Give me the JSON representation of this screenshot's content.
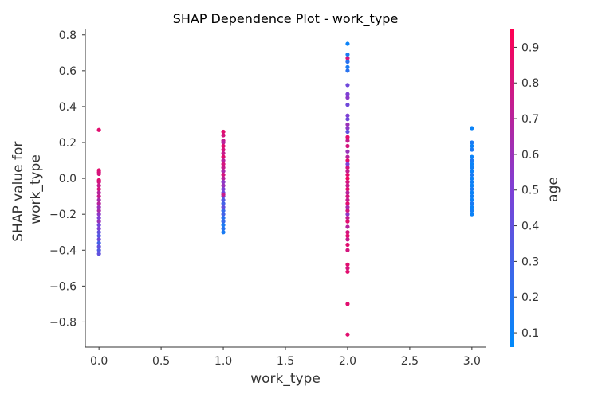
{
  "chart_data": {
    "type": "scatter",
    "title": "SHAP Dependence Plot - work_type",
    "xlabel": "work_type",
    "ylabel_lines": [
      "SHAP value for",
      "work_type"
    ],
    "xlim": [
      -0.11,
      3.11
    ],
    "ylim": [
      -0.94,
      0.83
    ],
    "x_ticks": [
      0.0,
      0.5,
      1.0,
      1.5,
      2.0,
      2.5,
      3.0
    ],
    "x_tick_labels": [
      "0.0",
      "0.5",
      "1.0",
      "1.5",
      "2.0",
      "2.5",
      "3.0"
    ],
    "y_ticks": [
      0.8,
      0.6,
      0.4,
      0.2,
      0.0,
      -0.2,
      -0.4,
      -0.6,
      -0.8
    ],
    "y_tick_labels": [
      "0.8",
      "0.6",
      "0.4",
      "0.2",
      "0.0",
      "−0.2",
      "−0.4",
      "−0.6",
      "−0.8"
    ],
    "grid": false,
    "colorbar": {
      "label": "age",
      "range": [
        0.06,
        0.95
      ],
      "ticks": [
        0.1,
        0.2,
        0.3,
        0.4,
        0.5,
        0.6,
        0.7,
        0.8,
        0.9
      ],
      "tick_labels": [
        "0.1",
        "0.2",
        "0.3",
        "0.4",
        "0.5",
        "0.6",
        "0.7",
        "0.8",
        "0.9"
      ],
      "colormap": [
        "#008afb",
        "#7f3fd5",
        "#ff0052"
      ]
    },
    "points": [
      {
        "x": 0,
        "y": 0.27,
        "c": 0.85
      },
      {
        "x": 0,
        "y": 0.045,
        "c": 0.85
      },
      {
        "x": 0,
        "y": 0.035,
        "c": 0.82
      },
      {
        "x": 0,
        "y": 0.025,
        "c": 0.8
      },
      {
        "x": 0,
        "y": -0.01,
        "c": 0.85
      },
      {
        "x": 0,
        "y": -0.02,
        "c": 0.8
      },
      {
        "x": 0,
        "y": -0.04,
        "c": 0.75
      },
      {
        "x": 0,
        "y": -0.06,
        "c": 0.8
      },
      {
        "x": 0,
        "y": -0.08,
        "c": 0.7
      },
      {
        "x": 0,
        "y": -0.1,
        "c": 0.75
      },
      {
        "x": 0,
        "y": -0.12,
        "c": 0.65
      },
      {
        "x": 0,
        "y": -0.14,
        "c": 0.7
      },
      {
        "x": 0,
        "y": -0.16,
        "c": 0.6
      },
      {
        "x": 0,
        "y": -0.18,
        "c": 0.65
      },
      {
        "x": 0,
        "y": -0.2,
        "c": 0.55
      },
      {
        "x": 0,
        "y": -0.22,
        "c": 0.5
      },
      {
        "x": 0,
        "y": -0.24,
        "c": 0.6
      },
      {
        "x": 0,
        "y": -0.26,
        "c": 0.45
      },
      {
        "x": 0,
        "y": -0.28,
        "c": 0.5
      },
      {
        "x": 0,
        "y": -0.3,
        "c": 0.4
      },
      {
        "x": 0,
        "y": -0.32,
        "c": 0.35
      },
      {
        "x": 0,
        "y": -0.34,
        "c": 0.45
      },
      {
        "x": 0,
        "y": -0.36,
        "c": 0.3
      },
      {
        "x": 0,
        "y": -0.38,
        "c": 0.4
      },
      {
        "x": 0,
        "y": -0.4,
        "c": 0.35
      },
      {
        "x": 0,
        "y": -0.42,
        "c": 0.4
      },
      {
        "x": 1,
        "y": 0.26,
        "c": 0.85
      },
      {
        "x": 1,
        "y": 0.24,
        "c": 0.8
      },
      {
        "x": 1,
        "y": 0.21,
        "c": 0.75
      },
      {
        "x": 1,
        "y": 0.2,
        "c": 0.7
      },
      {
        "x": 1,
        "y": 0.18,
        "c": 0.85
      },
      {
        "x": 1,
        "y": 0.16,
        "c": 0.8
      },
      {
        "x": 1,
        "y": 0.14,
        "c": 0.75
      },
      {
        "x": 1,
        "y": 0.12,
        "c": 0.85
      },
      {
        "x": 1,
        "y": 0.1,
        "c": 0.7
      },
      {
        "x": 1,
        "y": 0.08,
        "c": 0.8
      },
      {
        "x": 1,
        "y": 0.06,
        "c": 0.75
      },
      {
        "x": 1,
        "y": 0.04,
        "c": 0.65
      },
      {
        "x": 1,
        "y": 0.02,
        "c": 0.8
      },
      {
        "x": 1,
        "y": 0.0,
        "c": 0.7
      },
      {
        "x": 1,
        "y": -0.02,
        "c": 0.55
      },
      {
        "x": 1,
        "y": -0.04,
        "c": 0.6
      },
      {
        "x": 1,
        "y": -0.06,
        "c": 0.5
      },
      {
        "x": 1,
        "y": -0.08,
        "c": 0.45
      },
      {
        "x": 1,
        "y": -0.1,
        "c": 0.4
      },
      {
        "x": 1,
        "y": -0.12,
        "c": 0.35
      },
      {
        "x": 1,
        "y": -0.14,
        "c": 0.3
      },
      {
        "x": 1,
        "y": -0.16,
        "c": 0.4
      },
      {
        "x": 1,
        "y": -0.18,
        "c": 0.25
      },
      {
        "x": 1,
        "y": -0.2,
        "c": 0.3
      },
      {
        "x": 1,
        "y": -0.22,
        "c": 0.2
      },
      {
        "x": 1,
        "y": -0.24,
        "c": 0.25
      },
      {
        "x": 1,
        "y": -0.26,
        "c": 0.15
      },
      {
        "x": 1,
        "y": -0.28,
        "c": 0.2
      },
      {
        "x": 1,
        "y": -0.3,
        "c": 0.15
      },
      {
        "x": 1,
        "y": -0.09,
        "c": 0.75
      },
      {
        "x": 2,
        "y": 0.75,
        "c": 0.1
      },
      {
        "x": 2,
        "y": 0.69,
        "c": 0.15
      },
      {
        "x": 2,
        "y": 0.67,
        "c": 0.8
      },
      {
        "x": 2,
        "y": 0.65,
        "c": 0.2
      },
      {
        "x": 2,
        "y": 0.62,
        "c": 0.15
      },
      {
        "x": 2,
        "y": 0.6,
        "c": 0.2
      },
      {
        "x": 2,
        "y": 0.52,
        "c": 0.45
      },
      {
        "x": 2,
        "y": 0.47,
        "c": 0.5
      },
      {
        "x": 2,
        "y": 0.45,
        "c": 0.55
      },
      {
        "x": 2,
        "y": 0.41,
        "c": 0.45
      },
      {
        "x": 2,
        "y": 0.35,
        "c": 0.5
      },
      {
        "x": 2,
        "y": 0.33,
        "c": 0.45
      },
      {
        "x": 2,
        "y": 0.3,
        "c": 0.6
      },
      {
        "x": 2,
        "y": 0.28,
        "c": 0.55
      },
      {
        "x": 2,
        "y": 0.26,
        "c": 0.4
      },
      {
        "x": 2,
        "y": 0.23,
        "c": 0.85
      },
      {
        "x": 2,
        "y": 0.21,
        "c": 0.75
      },
      {
        "x": 2,
        "y": 0.18,
        "c": 0.8
      },
      {
        "x": 2,
        "y": 0.15,
        "c": 0.6
      },
      {
        "x": 2,
        "y": 0.12,
        "c": 0.7
      },
      {
        "x": 2,
        "y": 0.1,
        "c": 0.85
      },
      {
        "x": 2,
        "y": 0.08,
        "c": 0.5
      },
      {
        "x": 2,
        "y": 0.06,
        "c": 0.8
      },
      {
        "x": 2,
        "y": 0.04,
        "c": 0.75
      },
      {
        "x": 2,
        "y": 0.02,
        "c": 0.85
      },
      {
        "x": 2,
        "y": 0.0,
        "c": 0.9
      },
      {
        "x": 2,
        "y": -0.02,
        "c": 0.8
      },
      {
        "x": 2,
        "y": -0.04,
        "c": 0.75
      },
      {
        "x": 2,
        "y": -0.06,
        "c": 0.85
      },
      {
        "x": 2,
        "y": -0.08,
        "c": 0.7
      },
      {
        "x": 2,
        "y": -0.1,
        "c": 0.8
      },
      {
        "x": 2,
        "y": -0.12,
        "c": 0.75
      },
      {
        "x": 2,
        "y": -0.14,
        "c": 0.85
      },
      {
        "x": 2,
        "y": -0.16,
        "c": 0.65
      },
      {
        "x": 2,
        "y": -0.18,
        "c": 0.8
      },
      {
        "x": 2,
        "y": -0.2,
        "c": 0.55
      },
      {
        "x": 2,
        "y": -0.22,
        "c": 0.75
      },
      {
        "x": 2,
        "y": -0.24,
        "c": 0.85
      },
      {
        "x": 2,
        "y": -0.27,
        "c": 0.7
      },
      {
        "x": 2,
        "y": -0.3,
        "c": 0.8
      },
      {
        "x": 2,
        "y": -0.32,
        "c": 0.85
      },
      {
        "x": 2,
        "y": -0.34,
        "c": 0.75
      },
      {
        "x": 2,
        "y": -0.37,
        "c": 0.85
      },
      {
        "x": 2,
        "y": -0.4,
        "c": 0.8
      },
      {
        "x": 2,
        "y": -0.48,
        "c": 0.85
      },
      {
        "x": 2,
        "y": -0.5,
        "c": 0.8
      },
      {
        "x": 2,
        "y": -0.52,
        "c": 0.85
      },
      {
        "x": 2,
        "y": -0.7,
        "c": 0.85
      },
      {
        "x": 2,
        "y": -0.87,
        "c": 0.85
      },
      {
        "x": 3,
        "y": 0.28,
        "c": 0.1
      },
      {
        "x": 3,
        "y": 0.2,
        "c": 0.15
      },
      {
        "x": 3,
        "y": 0.18,
        "c": 0.1
      },
      {
        "x": 3,
        "y": 0.16,
        "c": 0.15
      },
      {
        "x": 3,
        "y": 0.12,
        "c": 0.1
      },
      {
        "x": 3,
        "y": 0.1,
        "c": 0.15
      },
      {
        "x": 3,
        "y": 0.08,
        "c": 0.1
      },
      {
        "x": 3,
        "y": 0.06,
        "c": 0.12
      },
      {
        "x": 3,
        "y": 0.04,
        "c": 0.1
      },
      {
        "x": 3,
        "y": 0.02,
        "c": 0.15
      },
      {
        "x": 3,
        "y": 0.0,
        "c": 0.1
      },
      {
        "x": 3,
        "y": -0.02,
        "c": 0.12
      },
      {
        "x": 3,
        "y": -0.04,
        "c": 0.1
      },
      {
        "x": 3,
        "y": -0.06,
        "c": 0.15
      },
      {
        "x": 3,
        "y": -0.08,
        "c": 0.1
      },
      {
        "x": 3,
        "y": -0.1,
        "c": 0.12
      },
      {
        "x": 3,
        "y": -0.12,
        "c": 0.1
      },
      {
        "x": 3,
        "y": -0.14,
        "c": 0.15
      },
      {
        "x": 3,
        "y": -0.16,
        "c": 0.1
      },
      {
        "x": 3,
        "y": -0.18,
        "c": 0.12
      },
      {
        "x": 3,
        "y": -0.2,
        "c": 0.1
      }
    ]
  }
}
